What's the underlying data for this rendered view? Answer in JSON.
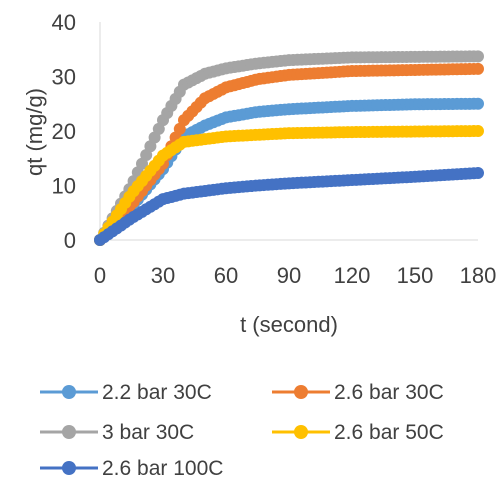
{
  "chart_data": {
    "type": "line",
    "title": "",
    "xlabel": "t (second)",
    "ylabel": "qt (mg/g)",
    "xlim": [
      0,
      180
    ],
    "ylim": [
      0,
      40
    ],
    "x_ticks": [
      0,
      30,
      60,
      90,
      120,
      150,
      180
    ],
    "y_ticks": [
      0,
      10,
      20,
      30,
      40
    ],
    "grid": false,
    "legend_position": "bottom",
    "series": [
      {
        "name": "2.2 bar 30C",
        "color": "#5B9BD5",
        "points": [
          [
            0,
            0
          ],
          [
            15,
            6
          ],
          [
            30,
            13
          ],
          [
            40,
            19
          ],
          [
            50,
            21
          ],
          [
            60,
            22.5
          ],
          [
            75,
            23.5
          ],
          [
            90,
            24
          ],
          [
            120,
            24.6
          ],
          [
            150,
            24.9
          ],
          [
            180,
            25
          ]
        ]
      },
      {
        "name": "2.6 bar 30C",
        "color": "#ED7D31",
        "points": [
          [
            0,
            0
          ],
          [
            15,
            6.5
          ],
          [
            30,
            14
          ],
          [
            40,
            22
          ],
          [
            50,
            26
          ],
          [
            60,
            28
          ],
          [
            75,
            29.5
          ],
          [
            90,
            30.3
          ],
          [
            120,
            31
          ],
          [
            150,
            31.2
          ],
          [
            180,
            31.4
          ]
        ]
      },
      {
        "name": "3 bar 30C",
        "color": "#A5A5A5",
        "points": [
          [
            0,
            0
          ],
          [
            15,
            10
          ],
          [
            30,
            22
          ],
          [
            40,
            28.5
          ],
          [
            50,
            30.5
          ],
          [
            60,
            31.5
          ],
          [
            75,
            32.4
          ],
          [
            90,
            33
          ],
          [
            120,
            33.5
          ],
          [
            150,
            33.6
          ],
          [
            180,
            33.7
          ]
        ]
      },
      {
        "name": "2.6 bar 50C",
        "color": "#FFC000",
        "points": [
          [
            0,
            0
          ],
          [
            15,
            8.5
          ],
          [
            30,
            15.5
          ],
          [
            40,
            18
          ],
          [
            50,
            18.5
          ],
          [
            60,
            19
          ],
          [
            75,
            19.3
          ],
          [
            90,
            19.6
          ],
          [
            120,
            19.8
          ],
          [
            150,
            19.9
          ],
          [
            180,
            20
          ]
        ]
      },
      {
        "name": "2.6 bar 100C",
        "color": "#4472C4",
        "points": [
          [
            0,
            0
          ],
          [
            15,
            4
          ],
          [
            30,
            7.5
          ],
          [
            40,
            8.5
          ],
          [
            50,
            9
          ],
          [
            60,
            9.5
          ],
          [
            75,
            10
          ],
          [
            90,
            10.4
          ],
          [
            120,
            11
          ],
          [
            150,
            11.6
          ],
          [
            180,
            12.3
          ]
        ]
      }
    ]
  }
}
